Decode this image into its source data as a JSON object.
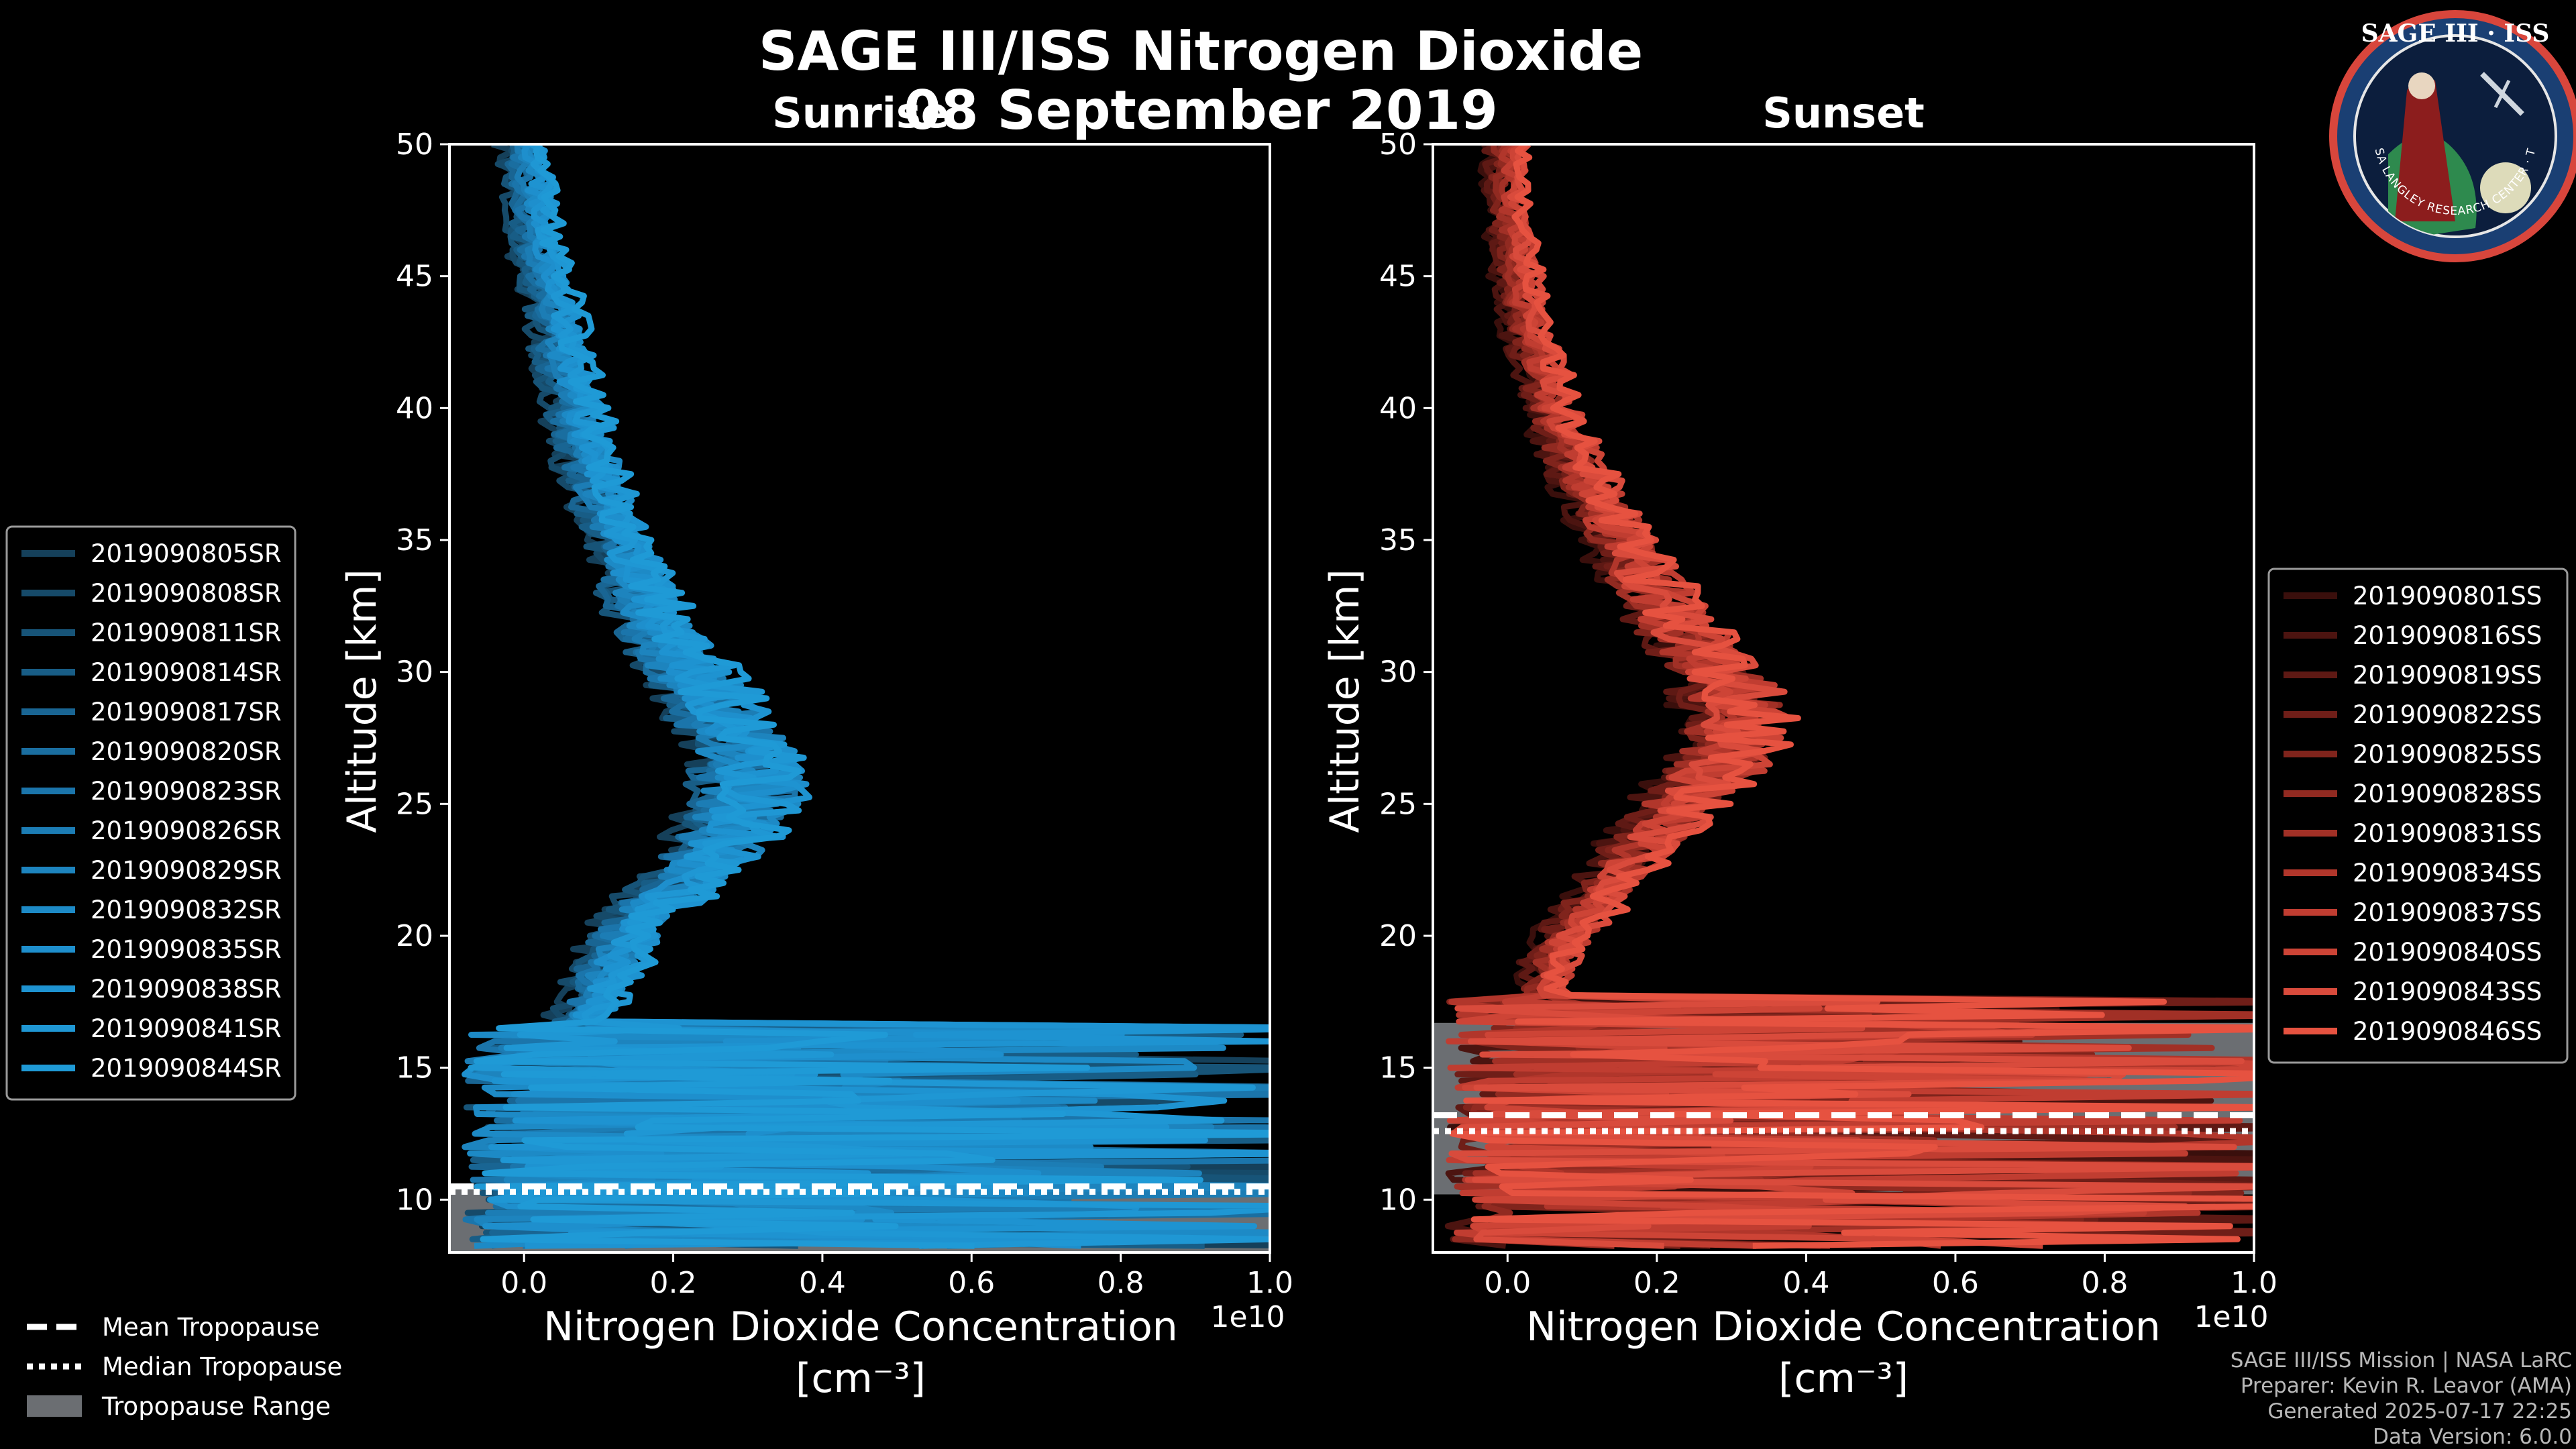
{
  "page": {
    "title": "SAGE III/ISS Nitrogen Dioxide",
    "date": "08 September 2019",
    "credits": [
      "SAGE III/ISS Mission | NASA LaRC",
      "Preparer: Kevin R. Leavor (AMA)",
      "Generated 2025-07-17 22:25",
      "Data Version: 6.0.0"
    ],
    "logo": {
      "title": "SAGE III · ISS",
      "ring_text": "BALL · NASA LANGLEY RESEARCH CENTER · TAS-I · ESA",
      "icon": "mission-patch"
    }
  },
  "colors": {
    "sunrise": "#1f9ad6",
    "sunset": "#ef5744",
    "tropo_fill": "#6b6e72",
    "background": "#000000"
  },
  "chart_data": [
    {
      "type": "line",
      "title": "Sunrise",
      "xlabel": "Nitrogen Dioxide Concentration",
      "xunit": "[cm⁻³]",
      "ylabel": "Altitude [km]",
      "xlim": [
        -0.1,
        1.0
      ],
      "xscale_label": "1e10",
      "ylim": [
        8,
        50
      ],
      "xticks": [
        0.0,
        0.2,
        0.4,
        0.6,
        0.8,
        1.0
      ],
      "yticks": [
        10,
        15,
        20,
        25,
        30,
        35,
        40,
        45,
        50
      ],
      "legend_position": "left",
      "tropopause": {
        "mean": 10.5,
        "median": 10.3,
        "range": [
          8,
          10.6
        ]
      },
      "profile": {
        "altitude": [
          50,
          48,
          46,
          44,
          42,
          40,
          38,
          36,
          34,
          32,
          30,
          29,
          28,
          27,
          26,
          25,
          24,
          23,
          22,
          21,
          20,
          19,
          18,
          17,
          16,
          15
        ],
        "no2": [
          0.0,
          0.01,
          0.02,
          0.04,
          0.05,
          0.07,
          0.09,
          0.11,
          0.14,
          0.17,
          0.22,
          0.25,
          0.27,
          0.29,
          0.3,
          0.3,
          0.28,
          0.25,
          0.21,
          0.17,
          0.14,
          0.12,
          0.1,
          0.08,
          0.06,
          0.05
        ]
      },
      "series": [
        {
          "name": "2019090805SR",
          "color": "#15405a"
        },
        {
          "name": "2019090808SR",
          "color": "#164a69"
        },
        {
          "name": "2019090811SR",
          "color": "#175478"
        },
        {
          "name": "2019090814SR",
          "color": "#185d86"
        },
        {
          "name": "2019090817SR",
          "color": "#196593"
        },
        {
          "name": "2019090820SR",
          "color": "#1a6ea0"
        },
        {
          "name": "2019090823SR",
          "color": "#1b75ab"
        },
        {
          "name": "2019090826SR",
          "color": "#1c7db5"
        },
        {
          "name": "2019090829SR",
          "color": "#1d84be"
        },
        {
          "name": "2019090832SR",
          "color": "#1d8ac6"
        },
        {
          "name": "2019090835SR",
          "color": "#1e8fcd"
        },
        {
          "name": "2019090838SR",
          "color": "#1e93d1"
        },
        {
          "name": "2019090841SR",
          "color": "#1f97d4"
        },
        {
          "name": "2019090844SR",
          "color": "#1f9ad6"
        }
      ]
    },
    {
      "type": "line",
      "title": "Sunset",
      "xlabel": "Nitrogen Dioxide Concentration",
      "xunit": "[cm⁻³]",
      "ylabel": "Altitude [km]",
      "xlim": [
        -0.1,
        1.0
      ],
      "xscale_label": "1e10",
      "ylim": [
        8,
        50
      ],
      "xticks": [
        0.0,
        0.2,
        0.4,
        0.6,
        0.8,
        1.0
      ],
      "yticks": [
        10,
        15,
        20,
        25,
        30,
        35,
        40,
        45,
        50
      ],
      "legend_position": "right",
      "tropopause": {
        "mean": 13.2,
        "median": 12.6,
        "range": [
          10.2,
          16.7
        ]
      },
      "profile": {
        "altitude": [
          50,
          48,
          46,
          44,
          42,
          40,
          38,
          36,
          34,
          32,
          30,
          29,
          28,
          27,
          26,
          25,
          24,
          23,
          22,
          21,
          20,
          19,
          18,
          17,
          16,
          15
        ],
        "no2": [
          0.0,
          0.0,
          0.01,
          0.02,
          0.04,
          0.06,
          0.09,
          0.13,
          0.17,
          0.22,
          0.28,
          0.3,
          0.31,
          0.3,
          0.27,
          0.23,
          0.2,
          0.17,
          0.14,
          0.11,
          0.08,
          0.06,
          0.05,
          0.04,
          0.04,
          0.04
        ]
      },
      "series": [
        {
          "name": "2019090801SS",
          "color": "#3a0f0c"
        },
        {
          "name": "2019090816SS",
          "color": "#4c1410"
        },
        {
          "name": "2019090819SS",
          "color": "#5e1914"
        },
        {
          "name": "2019090822SS",
          "color": "#6f1e18"
        },
        {
          "name": "2019090825SS",
          "color": "#80241c"
        },
        {
          "name": "2019090828SS",
          "color": "#912a21"
        },
        {
          "name": "2019090831SS",
          "color": "#a13026"
        },
        {
          "name": "2019090834SS",
          "color": "#b1362b"
        },
        {
          "name": "2019090837SS",
          "color": "#c03d31"
        },
        {
          "name": "2019090840SS",
          "color": "#cd4436"
        },
        {
          "name": "2019090843SS",
          "color": "#d94b3c"
        },
        {
          "name": "2019090846SS",
          "color": "#e65240"
        }
      ]
    }
  ],
  "tropopause_legend": [
    {
      "label": "Mean Tropopause",
      "style": "dashed"
    },
    {
      "label": "Median Tropopause",
      "style": "dotted"
    },
    {
      "label": "Tropopause Range",
      "style": "fill"
    }
  ]
}
